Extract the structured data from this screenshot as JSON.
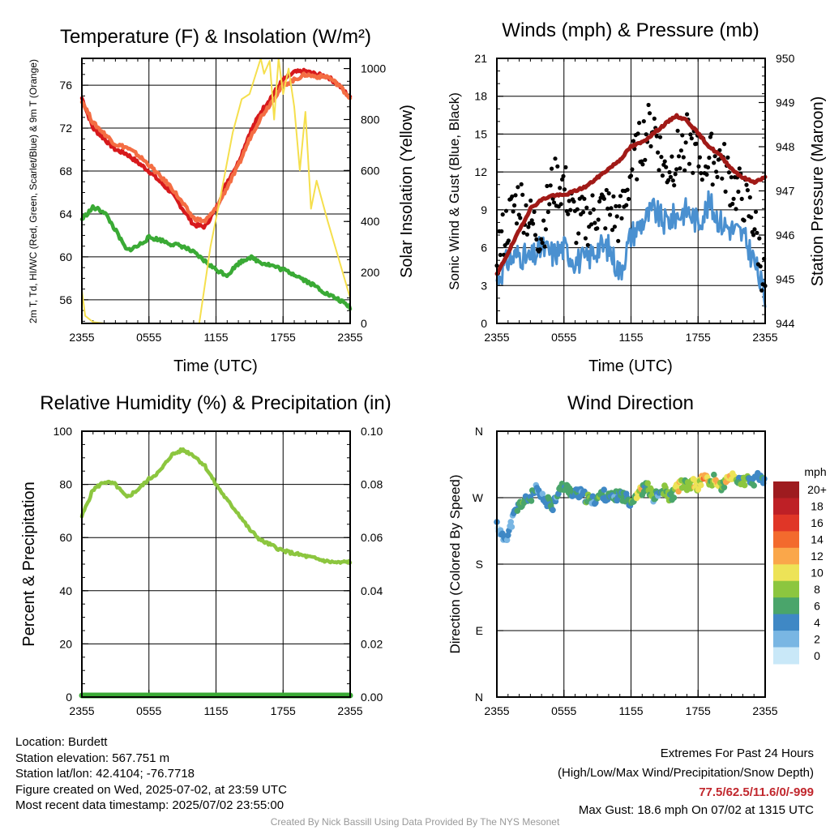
{
  "info": {
    "location": "Location: Burdett",
    "elevation": "Station elevation: 567.751 m",
    "latlon": "Station lat/lon: 42.4104; -76.7718",
    "created": "Figure created on Wed, 2025-07-02, at 23:59 UTC",
    "recent": "Most recent data timestamp: 2025/07/02 23:55:00"
  },
  "extremes": {
    "title": "Extremes For Past 24 Hours",
    "subtitle": "(High/Low/Max Wind/Precipitation/Snow Depth)",
    "values": "77.5/62.5/11.6/0/-999",
    "value_color": "#c1272d",
    "max_gust": "Max Gust: 18.6 mph On 07/02 at 1315 UTC"
  },
  "credit": "Created By Nick Bassill Using Data Provided By The NYS Mesonet",
  "chart_data": [
    {
      "type": "line",
      "title": "Temperature (F) & Insolation (W/m²)",
      "xlabel": "Time (UTC)",
      "ylabel": "2m T, Td, HI/WC (Red, Green, Scarlet/Blue) & 9m T (Orange)",
      "ylabel2": "Solar Insolation (Yellow)",
      "x_ticks": [
        "2355",
        "0555",
        "1155",
        "1755",
        "2355"
      ],
      "y_ticks": [
        56,
        60,
        64,
        68,
        72,
        76
      ],
      "y2_ticks": [
        0,
        200,
        400,
        600,
        800,
        1000
      ],
      "ylim": [
        53.8,
        78.5
      ],
      "y2lim": [
        0,
        1040
      ],
      "grid": true,
      "series": [
        {
          "color": "#d7191c",
          "axis": "left",
          "x": [
            0,
            1,
            2,
            3,
            4,
            5,
            6,
            7,
            8,
            9,
            10,
            11,
            12,
            13,
            14,
            15,
            16,
            17,
            18,
            19,
            20,
            21,
            22,
            23,
            24
          ],
          "values": [
            74.8,
            72,
            71,
            70,
            69.6,
            68.8,
            68,
            67,
            66,
            64.5,
            63,
            62.8,
            64.5,
            67,
            68.8,
            71.5,
            73.5,
            75,
            76.5,
            77.2,
            77.3,
            77,
            76.8,
            76,
            74.8
          ]
        },
        {
          "color": "#f46d43",
          "axis": "left",
          "x": [
            0,
            1,
            2,
            3,
            4,
            5,
            6,
            7,
            8,
            9,
            10,
            11,
            12,
            13,
            14,
            15,
            16,
            17,
            18,
            19,
            20,
            21,
            22,
            23,
            24
          ],
          "values": [
            74.6,
            72.5,
            71.5,
            70.5,
            70.2,
            69.5,
            68.6,
            67.5,
            66.5,
            65,
            63.6,
            63.3,
            64.5,
            66.5,
            68.5,
            71,
            73,
            74.5,
            76,
            76.5,
            77,
            76.8,
            76.8,
            76,
            74.8
          ]
        },
        {
          "color": "#3aaa35",
          "axis": "left",
          "x": [
            0,
            1,
            2,
            3,
            4,
            5,
            6,
            7,
            8,
            9,
            10,
            11,
            12,
            13,
            14,
            15,
            16,
            17,
            18,
            19,
            20,
            21,
            22,
            23,
            24
          ],
          "values": [
            63.5,
            64.6,
            64.2,
            62.5,
            60.6,
            61,
            61.8,
            61.6,
            61.2,
            61,
            60.4,
            59.6,
            58.8,
            58.3,
            59.4,
            60,
            59.5,
            59.2,
            58.8,
            58.4,
            57.8,
            57.2,
            56.5,
            56,
            55.3
          ]
        },
        {
          "color": "#f5df4d",
          "axis": "right",
          "x": [
            0,
            0.3,
            1,
            2,
            4,
            6,
            8,
            9,
            9.6,
            10.5,
            11.5,
            12.5,
            13.5,
            14.3,
            15,
            16,
            16.3,
            16.8,
            17.2,
            17.6,
            18,
            18.5,
            19,
            19.5,
            20,
            20.5,
            21,
            22,
            23,
            24
          ],
          "values": [
            130,
            30,
            5,
            0,
            0,
            0,
            0,
            0,
            0,
            0,
            300,
            520,
            750,
            880,
            900,
            1040,
            980,
            1030,
            800,
            1040,
            900,
            1000,
            850,
            600,
            830,
            450,
            560,
            400,
            250,
            100
          ]
        }
      ]
    },
    {
      "type": "line",
      "title": "Winds (mph) & Pressure (mb)",
      "xlabel": "Time (UTC)",
      "ylabel": "Sonic Wind & Gust (Blue, Black)",
      "ylabel2": "Station Pressure (Maroon)",
      "x_ticks": [
        "2355",
        "0555",
        "1155",
        "1755",
        "2355"
      ],
      "y_ticks": [
        0,
        3,
        6,
        9,
        12,
        15,
        18,
        21
      ],
      "y2_ticks": [
        944,
        945,
        946,
        947,
        948,
        949,
        950
      ],
      "ylim": [
        0,
        21
      ],
      "y2lim": [
        944,
        950
      ],
      "grid": true,
      "series": [
        {
          "color": "#4a90d0",
          "axis": "left",
          "type": "line",
          "x": [
            0,
            1,
            2,
            3,
            4,
            5,
            6,
            7,
            8,
            9,
            10,
            11,
            12,
            13,
            14,
            15,
            16,
            17,
            18,
            19,
            20,
            21,
            22,
            23,
            24
          ],
          "values": [
            3.5,
            5,
            5.5,
            5,
            6,
            5.5,
            6,
            5,
            5,
            6,
            6,
            4,
            7,
            8,
            9,
            8,
            8.5,
            9,
            8,
            9.5,
            8,
            7.5,
            7,
            5,
            2
          ]
        },
        {
          "color": "#000000",
          "axis": "left",
          "type": "scatter",
          "x": [
            0,
            1,
            2,
            3,
            4,
            5,
            6,
            7,
            8,
            9,
            10,
            11,
            12,
            13,
            14,
            15,
            16,
            17,
            18,
            19,
            20,
            21,
            22,
            23,
            24
          ],
          "values": [
            5.5,
            8,
            10,
            8,
            7,
            11,
            11,
            8,
            8,
            9,
            9,
            8,
            12,
            14.5,
            16,
            12,
            13,
            14.5,
            13,
            13,
            13,
            11,
            10,
            8,
            3
          ]
        },
        {
          "color": "#a11a17",
          "axis": "right",
          "type": "line",
          "x": [
            0,
            1,
            2,
            3,
            4,
            5,
            6,
            7,
            8,
            9,
            10,
            11,
            12,
            13,
            14,
            15,
            16,
            17,
            18,
            19,
            20,
            21,
            22,
            23,
            24
          ],
          "values": [
            945.1,
            945.6,
            946.1,
            946.6,
            946.8,
            946.9,
            946.9,
            947,
            947.1,
            947.3,
            947.5,
            947.7,
            948,
            948.1,
            948.3,
            948.5,
            948.7,
            948.6,
            948.3,
            948,
            947.8,
            947.5,
            947.3,
            947.2,
            947.3
          ]
        }
      ]
    },
    {
      "type": "line",
      "title": "Relative Humidity (%) & Precipitation (in)",
      "ylabel": "Percent & Precipitation",
      "x_ticks": [
        "2355",
        "0555",
        "1155",
        "1755",
        "2355"
      ],
      "y_ticks": [
        0,
        20,
        40,
        60,
        80,
        100
      ],
      "y2_ticks": [
        "0.00",
        "0.02",
        "0.04",
        "0.06",
        "0.08",
        "0.10"
      ],
      "ylim": [
        0,
        100
      ],
      "y2lim": [
        0,
        0.1
      ],
      "grid": true,
      "series": [
        {
          "color": "#8cc63f",
          "axis": "left",
          "x": [
            0,
            1,
            2,
            3,
            4,
            5,
            6,
            7,
            8,
            9,
            10,
            11,
            12,
            13,
            14,
            15,
            16,
            17,
            18,
            19,
            20,
            21,
            22,
            23,
            24
          ],
          "values": [
            68,
            78,
            81,
            80,
            75,
            78,
            82,
            85,
            91,
            93,
            91,
            87,
            80,
            74,
            69,
            63,
            59,
            57,
            55,
            54,
            53,
            52,
            51,
            50.5,
            51
          ]
        },
        {
          "color": "#3aaa35",
          "axis": "right",
          "x": [
            0,
            24
          ],
          "values": [
            0,
            0
          ]
        }
      ]
    },
    {
      "type": "scatter",
      "title": "Wind Direction",
      "ylabel": "Direction (Colored By Speed)",
      "x_ticks": [
        "2355",
        "0555",
        "1155",
        "1755",
        "2355"
      ],
      "y_ticks": [
        "N",
        "E",
        "S",
        "W",
        "N"
      ],
      "ylim": [
        0,
        360
      ],
      "grid": true,
      "legend": {
        "title": "mph",
        "labels": [
          "20+",
          "18",
          "16",
          "14",
          "12",
          "10",
          "8",
          "6",
          "4",
          "2",
          "0"
        ],
        "colors": [
          "#9e1b1f",
          "#be2026",
          "#e03627",
          "#f36a2d",
          "#faa74a",
          "#ede357",
          "#8cc63f",
          "#4aa56b",
          "#3f88c5",
          "#79b6e3",
          "#c9e8f8"
        ]
      },
      "x": [
        0,
        0.5,
        1,
        1.5,
        2,
        2.5,
        3,
        3.5,
        4,
        4.5,
        5,
        5.5,
        6,
        6.5,
        7,
        7.5,
        8,
        8.5,
        9,
        9.5,
        10,
        10.5,
        11,
        11.5,
        12,
        12.5,
        13,
        13.5,
        14,
        14.5,
        15,
        15.5,
        16,
        16.5,
        17,
        17.5,
        18,
        18.5,
        19,
        19.5,
        20,
        20.5,
        21,
        21.5,
        22,
        22.5,
        23,
        23.5,
        24
      ],
      "values": [
        235,
        215,
        220,
        245,
        260,
        265,
        270,
        280,
        270,
        265,
        260,
        280,
        285,
        280,
        275,
        275,
        270,
        265,
        270,
        275,
        270,
        270,
        275,
        270,
        265,
        275,
        280,
        285,
        270,
        275,
        280,
        270,
        280,
        290,
        285,
        290,
        285,
        300,
        290,
        295,
        285,
        290,
        300,
        295,
        290,
        295,
        290,
        300,
        290
      ],
      "speeds": [
        2,
        3,
        3,
        4,
        6,
        5,
        6,
        4,
        4,
        5,
        4,
        6,
        5,
        6,
        5,
        4,
        6,
        4,
        6,
        5,
        5,
        4,
        6,
        5,
        6,
        10,
        6,
        8,
        4,
        6,
        8,
        6,
        10,
        7,
        8,
        10,
        10,
        12,
        8,
        11,
        7,
        10,
        9,
        6,
        8,
        5,
        4,
        5,
        4
      ]
    }
  ]
}
